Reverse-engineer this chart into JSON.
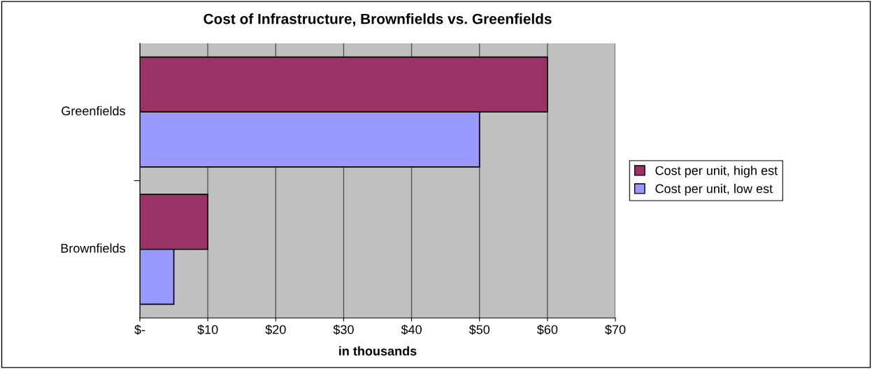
{
  "chart_data": {
    "type": "bar",
    "orientation": "horizontal",
    "title": "Cost of Infrastructure, Brownfields vs. Greenfields",
    "xlabel": "in thousands",
    "categories": [
      "Greenfields",
      "Brownfields"
    ],
    "series": [
      {
        "name": "Cost per unit, high est",
        "color": "#993366",
        "values": [
          60,
          10
        ]
      },
      {
        "name": "Cost per unit, low est",
        "color": "#9999ff",
        "values": [
          50,
          5
        ]
      }
    ],
    "xlim": [
      0,
      70
    ],
    "xticks": [
      {
        "value": 0,
        "label": "$-"
      },
      {
        "value": 10,
        "label": "$10"
      },
      {
        "value": 20,
        "label": "$20"
      },
      {
        "value": 30,
        "label": "$30"
      },
      {
        "value": 40,
        "label": "$40"
      },
      {
        "value": 50,
        "label": "$50"
      },
      {
        "value": 60,
        "label": "$60"
      },
      {
        "value": 70,
        "label": "$70"
      }
    ],
    "grid": "x",
    "legend": "right"
  }
}
